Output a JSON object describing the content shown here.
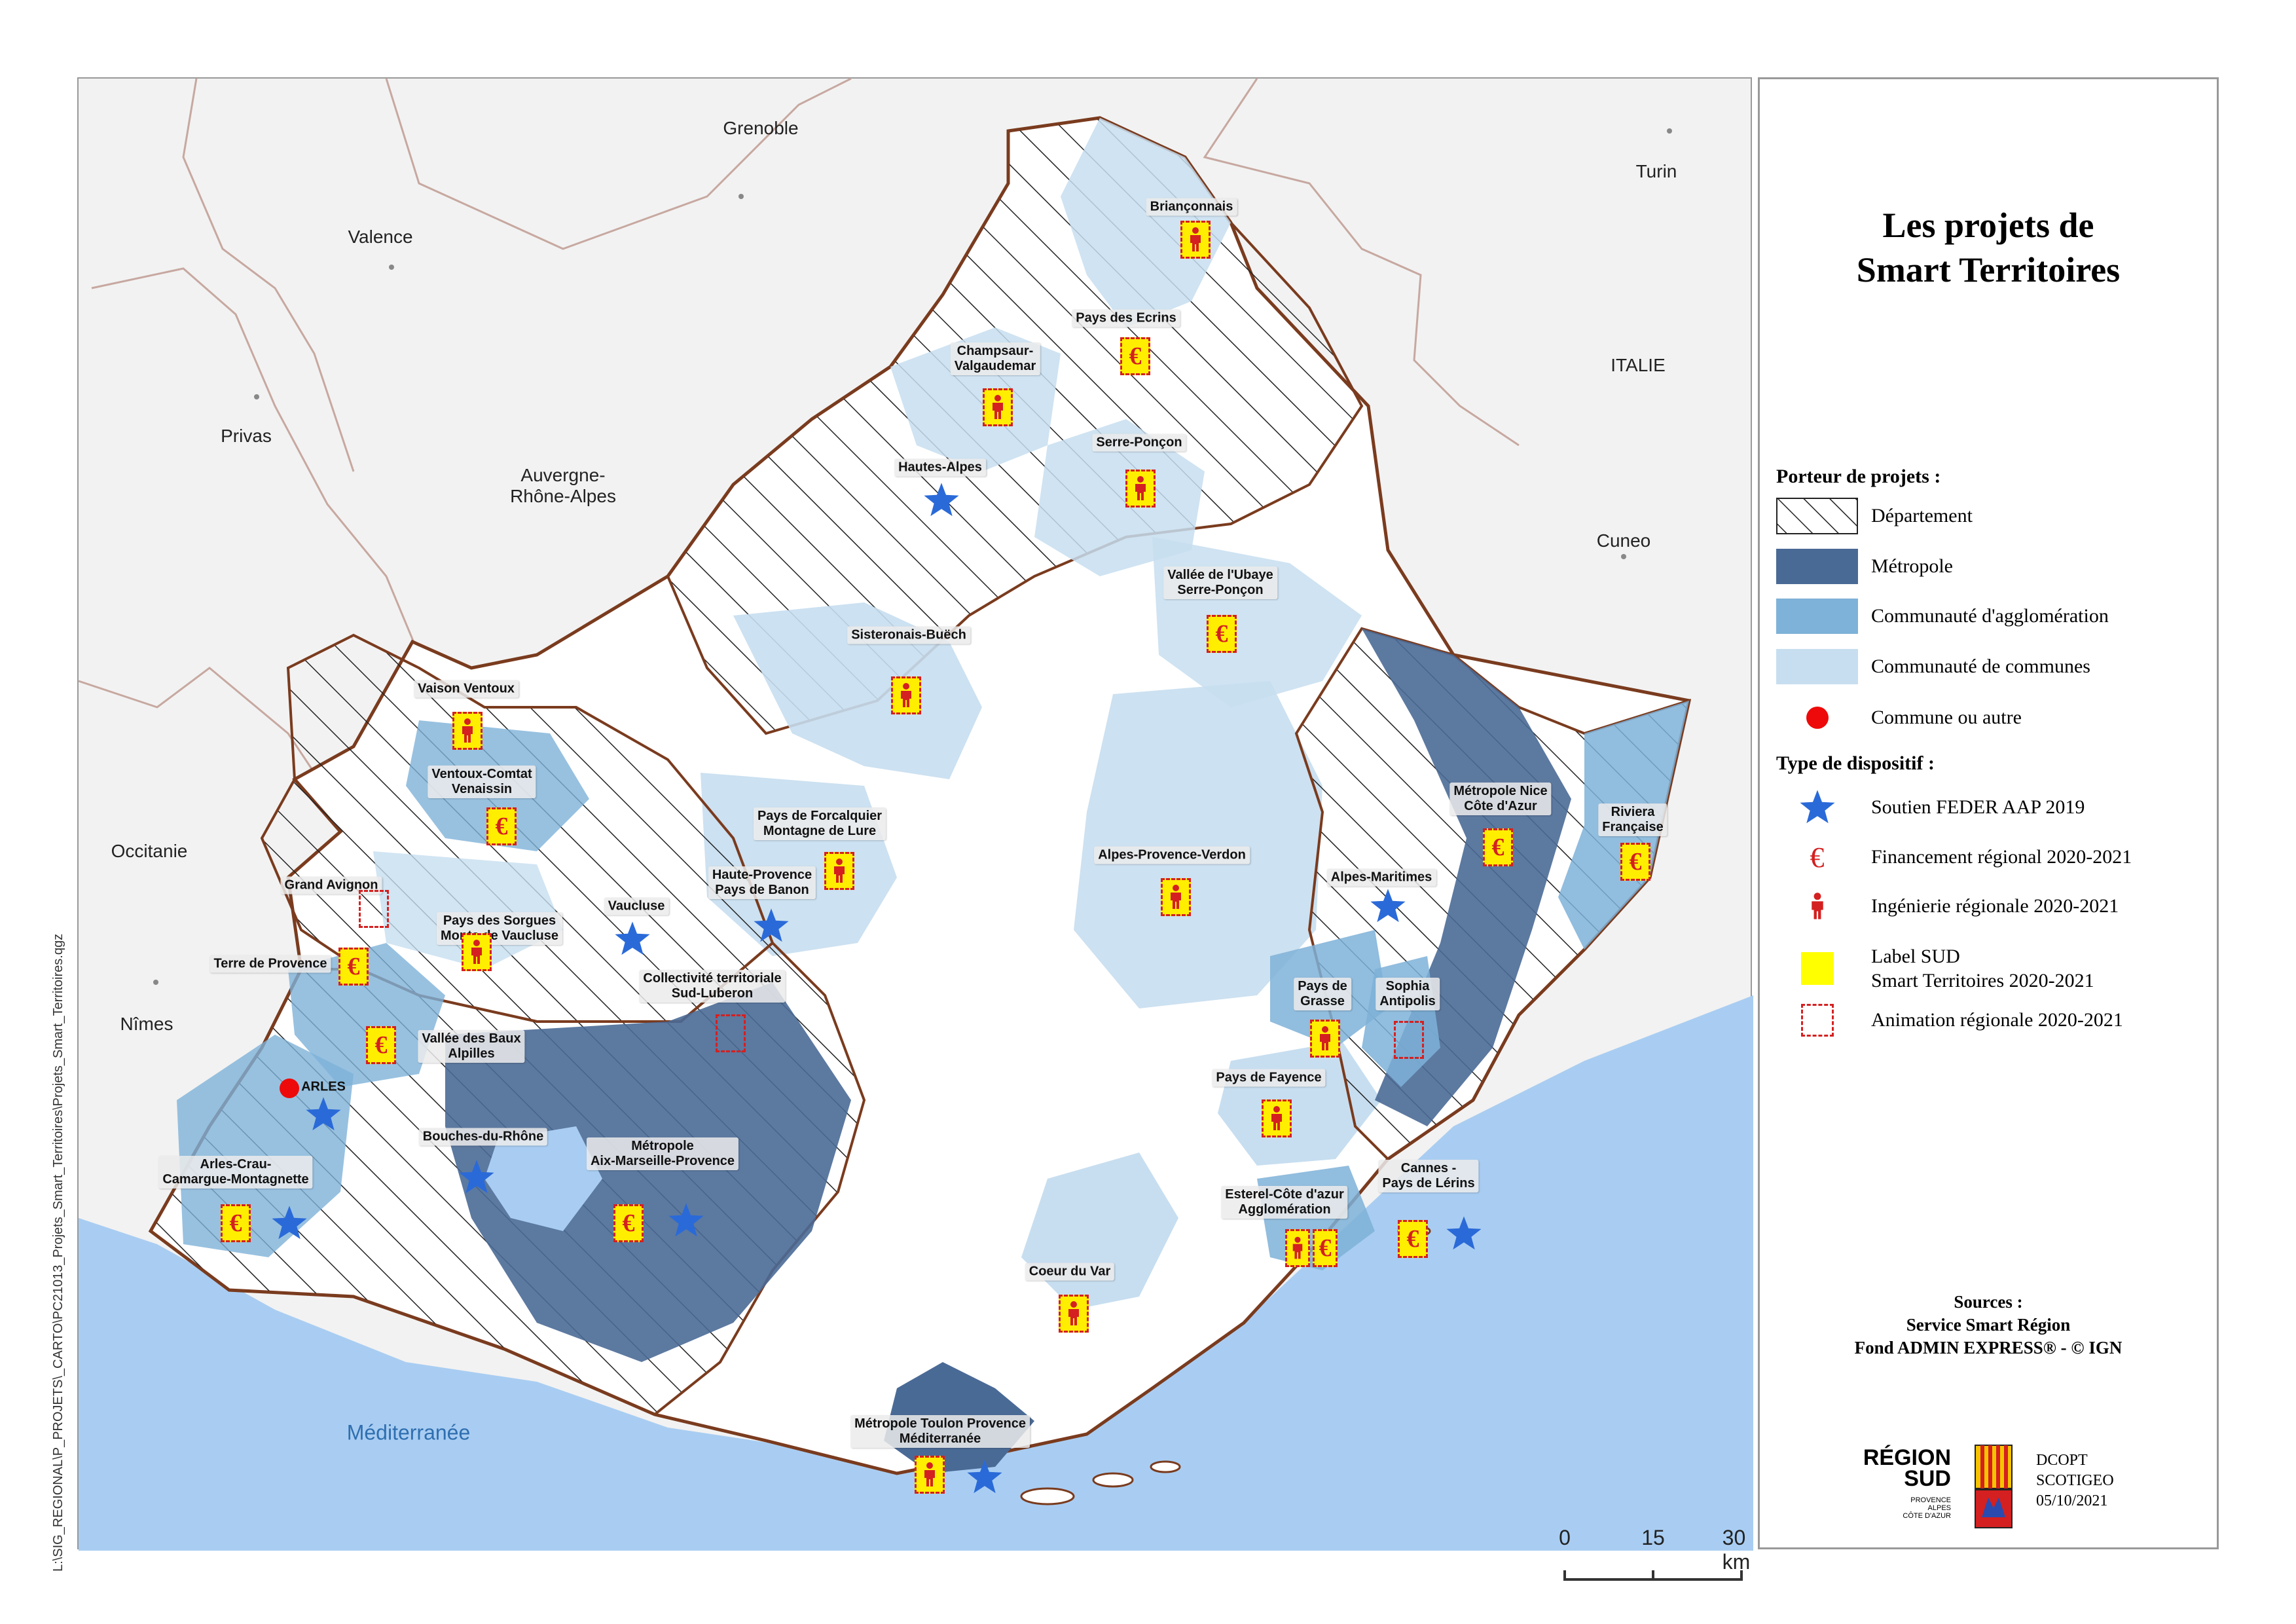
{
  "title": "Les projets de\nSmart Territoires",
  "file_path": "L:\\SIG_REGIONAL\\P_PROJETS\\_CARTO\\PC21013_Projets_Smart_Territoires\\Projets_Smart_Territoires.qgz",
  "sea_label": "Méditerranée",
  "cities": [
    "Grenoble",
    "Valence",
    "Privas",
    "Auvergne-\nRhône-Alpes",
    "Turin",
    "ITALIE",
    "Cuneo",
    "Occitanie",
    "Nîmes"
  ],
  "territory_labels": [
    "Briançonnais",
    "Pays des Ecrins",
    "Champsaur-\nValgaudemar",
    "Serre-Ponçon",
    "Hautes-Alpes",
    "Vallée de l'Ubaye\nSerre-Ponçon",
    "Sisteronais-Buëch",
    "Vaison Ventoux",
    "Ventoux-Comtat\nVenaissin",
    "Pays de Forcalquier\nMontagne de Lure",
    "Alpes-Provence-Verdon",
    "Métropole Nice\nCôte d'Azur",
    "Riviera\nFrançaise",
    "Grand Avignon",
    "Pays des Sorgues\nMonts de Vaucluse",
    "Vaucluse",
    "Haute-Provence\nPays de Banon",
    "Alpes-Maritimes",
    "Terre de Provence",
    "Collectivité territoriale\nSud-Luberon",
    "Pays de\nGrasse",
    "Sophia\nAntipolis",
    "Vallée des Baux\nAlpilles",
    "ARLES",
    "Pays de Fayence",
    "Bouches-du-Rhône",
    "Métropole\nAix-Marseille-Provence",
    "Arles-Crau-\nCamargue-Montagnette",
    "Cannes -\nPays de Lérins",
    "Esterel-Côte d'azur\nAgglomération",
    "Coeur du Var",
    "Métropole Toulon Provence\nMéditerranée"
  ],
  "legend": {
    "porteur_heading": "Porteur de projets :",
    "porteur_items": [
      {
        "label": "Département",
        "symbol": "hatch"
      },
      {
        "label": "Métropole",
        "color": "#4a6a96"
      },
      {
        "label": "Communauté d'agglomération",
        "color": "#7eb2d8"
      },
      {
        "label": "Communauté de communes",
        "color": "#c7def0"
      },
      {
        "label": "Commune ou autre",
        "color": "#ee0a0a"
      }
    ],
    "dispositif_heading": "Type de dispositif :",
    "dispositif_items": [
      {
        "label": "Soutien FEDER AAP 2019",
        "icon": "star-icon"
      },
      {
        "label": "Financement régional 2020-2021",
        "icon": "euro-icon"
      },
      {
        "label": "Ingénierie régionale 2020-2021",
        "icon": "person-icon"
      },
      {
        "label": "Label SUD\nSmart Territoires 2020-2021",
        "color": "#ffff00"
      },
      {
        "label": "Animation régionale 2020-2021",
        "icon": "dashed-square-icon"
      }
    ]
  },
  "sources": "Sources :\nService Smart Région\nFond ADMIN EXPRESS® - © IGN",
  "scale": {
    "ticks": [
      "0",
      "15",
      "30 km"
    ]
  },
  "logo": {
    "name": "RÉGION\nSUD",
    "sub": "PROVENCE\nALPES\nCÔTE D'AZUR"
  },
  "credit": "DCOPT\nSCOTIGEO\n05/10/2021",
  "colors": {
    "sea": "#a9cdf2",
    "land": "#f2f2f2",
    "border": "#7a3b1e",
    "star": "#2a6ad8",
    "euro": "#d42020",
    "label_yellow": "#ffee00"
  }
}
